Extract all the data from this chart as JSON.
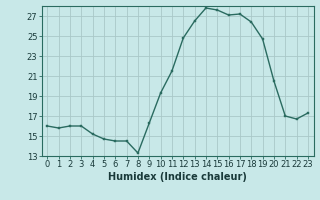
{
  "x": [
    0,
    1,
    2,
    3,
    4,
    5,
    6,
    7,
    8,
    9,
    10,
    11,
    12,
    13,
    14,
    15,
    16,
    17,
    18,
    19,
    20,
    21,
    22,
    23
  ],
  "y": [
    16.0,
    15.8,
    16.0,
    16.0,
    15.2,
    14.7,
    14.5,
    14.5,
    13.3,
    16.3,
    19.3,
    21.5,
    24.8,
    26.5,
    27.8,
    27.6,
    27.1,
    27.2,
    26.4,
    24.7,
    20.5,
    17.0,
    16.7,
    17.3
  ],
  "bg_color": "#c8e8e8",
  "line_color": "#2a6b60",
  "marker_color": "#2a6b60",
  "grid_color": "#aac8c8",
  "xlabel": "Humidex (Indice chaleur)",
  "ylim": [
    13,
    28
  ],
  "yticks": [
    13,
    15,
    17,
    19,
    21,
    23,
    25,
    27
  ],
  "xticks": [
    0,
    1,
    2,
    3,
    4,
    5,
    6,
    7,
    8,
    9,
    10,
    11,
    12,
    13,
    14,
    15,
    16,
    17,
    18,
    19,
    20,
    21,
    22,
    23
  ],
  "tick_fontsize": 6.0,
  "xlabel_fontsize": 7.0
}
